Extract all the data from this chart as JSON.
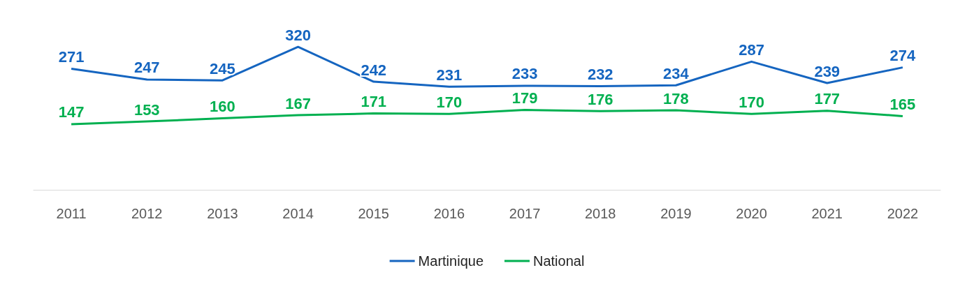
{
  "chart_data": {
    "type": "line",
    "categories": [
      "2011",
      "2012",
      "2013",
      "2014",
      "2015",
      "2016",
      "2017",
      "2018",
      "2019",
      "2020",
      "2021",
      "2022"
    ],
    "series": [
      {
        "name": "Martinique",
        "color": "#1565c0",
        "values": [
          271,
          247,
          245,
          320,
          242,
          231,
          233,
          232,
          234,
          287,
          239,
          274
        ]
      },
      {
        "name": "National",
        "color": "#00b050",
        "values": [
          147,
          153,
          160,
          167,
          171,
          170,
          179,
          176,
          178,
          170,
          177,
          165
        ]
      }
    ],
    "data_labels": true,
    "legend": "bottom",
    "grid": false,
    "marker": "none",
    "line_style": "solid",
    "tick_labels": "x"
  }
}
